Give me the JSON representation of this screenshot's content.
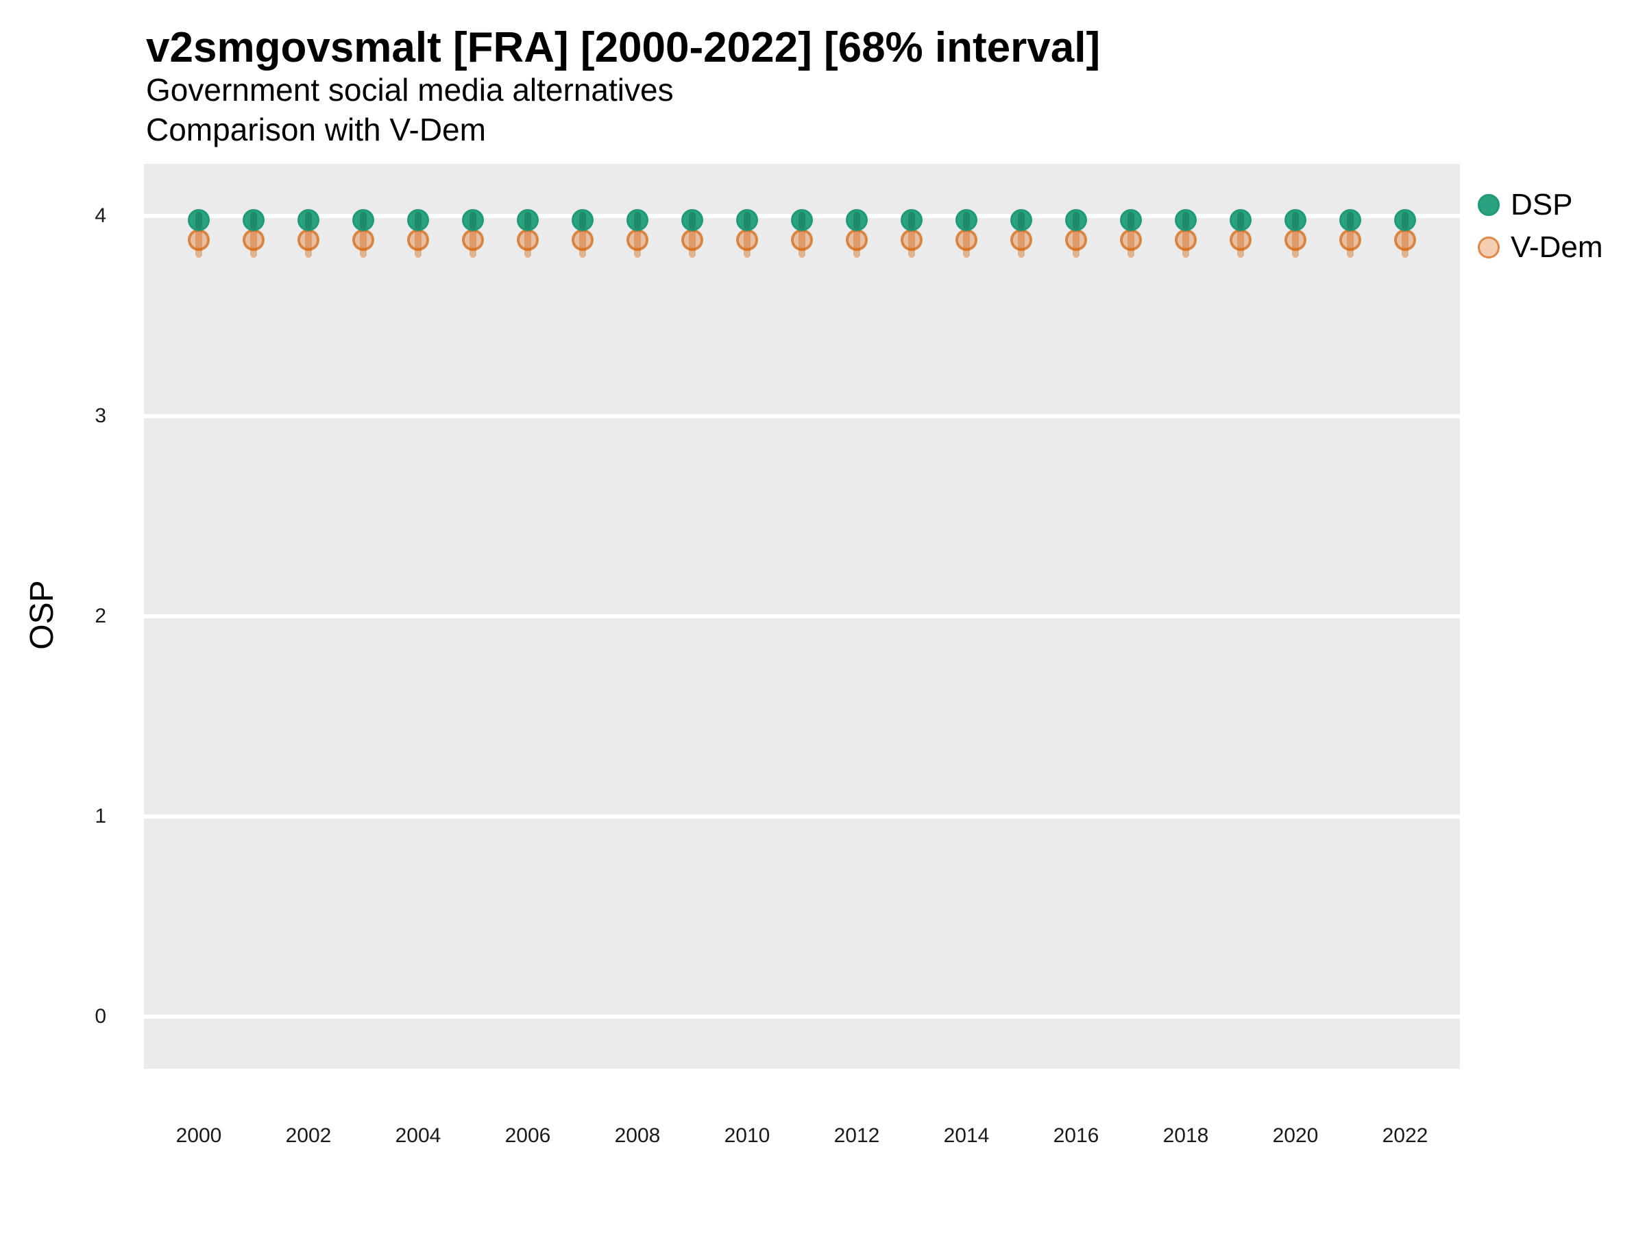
{
  "header": {
    "title": "v2smgovsmalt [FRA] [2000-2022] [68% interval]",
    "subtitle_line1": "Government social media alternatives",
    "subtitle_line2": "Comparison with V-Dem"
  },
  "y_axis": {
    "title": "OSP",
    "tick_labels": [
      "4",
      "3",
      "2",
      "1",
      "0"
    ],
    "tick_values": [
      4,
      3,
      2,
      1,
      0
    ]
  },
  "x_axis": {
    "tick_labels": [
      "2000",
      "2002",
      "2004",
      "2006",
      "2008",
      "2010",
      "2012",
      "2014",
      "2016",
      "2018",
      "2020",
      "2022"
    ],
    "tick_values": [
      2000,
      2002,
      2004,
      2006,
      2008,
      2010,
      2012,
      2014,
      2016,
      2018,
      2020,
      2022
    ]
  },
  "legend": {
    "items": [
      {
        "label": "DSP",
        "key": "dsp"
      },
      {
        "label": "V-Dem",
        "key": "vdem"
      }
    ]
  },
  "colors": {
    "dsp_fill": "#2AA180",
    "dsp_stroke": "#1D9B77",
    "dsp_errorbar": "rgba(10,95,70,0.35)",
    "vdem_base": "#D65E04",
    "vdem_fill": "rgba(214,94,4,0.30)",
    "vdem_stroke": "rgba(214,94,4,0.62)",
    "vdem_errorbar": "rgba(214,94,4,0.40)",
    "panel_background": "#EBEBEB",
    "gridline": "#FFFFFF",
    "text": "#000000"
  },
  "chart_data": {
    "type": "scatter",
    "title": "v2smgovsmalt [FRA] [2000-2022] [68% interval]",
    "subtitle": [
      "Government social media alternatives",
      "Comparison with V-Dem"
    ],
    "xlabel": "",
    "ylabel": "OSP",
    "interval": "68%",
    "country": "FRA",
    "variable": "v2smgovsmalt",
    "xlim": [
      1999,
      2023
    ],
    "ylim": [
      -0.26,
      4.25
    ],
    "y_ticks": [
      0,
      1,
      2,
      3,
      4
    ],
    "x_ticks": [
      2000,
      2002,
      2004,
      2006,
      2008,
      2010,
      2012,
      2014,
      2016,
      2018,
      2020,
      2022
    ],
    "grid": "horizontal-major-only",
    "legend_position": "right-top",
    "x": [
      2000,
      2001,
      2002,
      2003,
      2004,
      2005,
      2006,
      2007,
      2008,
      2009,
      2010,
      2011,
      2012,
      2013,
      2014,
      2015,
      2016,
      2017,
      2018,
      2019,
      2020,
      2021,
      2022
    ],
    "series": [
      {
        "name": "DSP",
        "values": [
          3.98,
          3.98,
          3.98,
          3.98,
          3.98,
          3.98,
          3.98,
          3.98,
          3.98,
          3.98,
          3.98,
          3.98,
          3.98,
          3.98,
          3.98,
          3.98,
          3.98,
          3.98,
          3.98,
          3.98,
          3.98,
          3.98,
          3.98
        ],
        "interval_low": [
          3.93,
          3.93,
          3.93,
          3.93,
          3.93,
          3.93,
          3.93,
          3.93,
          3.93,
          3.93,
          3.93,
          3.93,
          3.93,
          3.93,
          3.93,
          3.93,
          3.93,
          3.93,
          3.93,
          3.93,
          3.93,
          3.93,
          3.93
        ],
        "interval_high": [
          4.02,
          4.02,
          4.02,
          4.02,
          4.02,
          4.02,
          4.02,
          4.02,
          4.02,
          4.02,
          4.02,
          4.02,
          4.02,
          4.02,
          4.02,
          4.02,
          4.02,
          4.02,
          4.02,
          4.02,
          4.02,
          4.02,
          4.02
        ]
      },
      {
        "name": "V-Dem",
        "values": [
          3.88,
          3.88,
          3.88,
          3.88,
          3.88,
          3.88,
          3.88,
          3.88,
          3.88,
          3.88,
          3.88,
          3.88,
          3.88,
          3.88,
          3.88,
          3.88,
          3.88,
          3.88,
          3.88,
          3.88,
          3.88,
          3.88,
          3.88
        ],
        "interval_low": [
          3.79,
          3.79,
          3.79,
          3.79,
          3.79,
          3.79,
          3.79,
          3.79,
          3.79,
          3.79,
          3.79,
          3.79,
          3.79,
          3.79,
          3.79,
          3.79,
          3.79,
          3.79,
          3.79,
          3.79,
          3.79,
          3.79,
          3.79
        ],
        "interval_high": [
          3.97,
          3.97,
          3.97,
          3.97,
          3.97,
          3.97,
          3.97,
          3.97,
          3.97,
          3.97,
          3.97,
          3.97,
          3.97,
          3.97,
          3.97,
          3.97,
          3.97,
          3.97,
          3.97,
          3.97,
          3.97,
          3.97,
          3.97
        ]
      }
    ]
  }
}
